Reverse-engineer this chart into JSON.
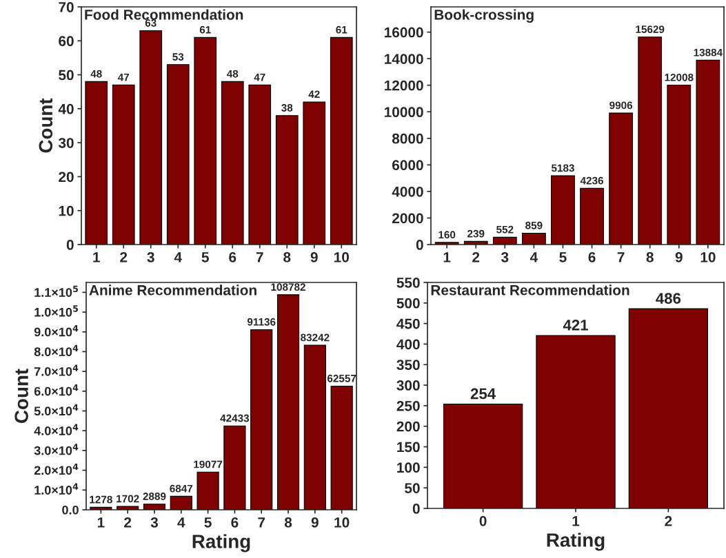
{
  "chart_data": [
    {
      "type": "bar",
      "title": "Food Recommendation",
      "ylabel": "Count",
      "categories": [
        "1",
        "2",
        "3",
        "4",
        "5",
        "6",
        "7",
        "8",
        "9",
        "10"
      ],
      "values": [
        48,
        47,
        63,
        53,
        61,
        48,
        47,
        38,
        42,
        61
      ],
      "color": "#7f0000",
      "ylim": [
        0,
        70
      ],
      "yticks": [
        0,
        10,
        20,
        30,
        40,
        50,
        60,
        70
      ],
      "data_labels": true,
      "grid": false,
      "legend": false
    },
    {
      "type": "bar",
      "title": "Book-crossing",
      "categories": [
        "1",
        "2",
        "3",
        "4",
        "5",
        "6",
        "7",
        "8",
        "9",
        "10"
      ],
      "values": [
        160,
        239,
        552,
        859,
        5183,
        4236,
        9906,
        15629,
        12008,
        13884
      ],
      "color": "#7f0000",
      "ylim": [
        0,
        17900
      ],
      "yticks": [
        0,
        2000,
        4000,
        6000,
        8000,
        10000,
        12000,
        14000,
        16000
      ],
      "data_labels": true,
      "grid": false,
      "legend": false
    },
    {
      "type": "bar",
      "title": "Anime Recommendation",
      "ylabel": "Count",
      "xlabel": "Rating",
      "categories": [
        "1",
        "2",
        "3",
        "4",
        "5",
        "6",
        "7",
        "8",
        "9",
        "10"
      ],
      "values": [
        1278,
        1702,
        2889,
        6847,
        19077,
        42433,
        91136,
        108782,
        83242,
        62557
      ],
      "color": "#7f0000",
      "ylim": [
        0,
        115000
      ],
      "yticks": [
        {
          "value": 0,
          "label": "0.0"
        },
        {
          "value": 10000,
          "label": "1.0×10$^{4}$"
        },
        {
          "value": 20000,
          "label": "2.0×10$^{4}$"
        },
        {
          "value": 30000,
          "label": "3.0×10$^{4}$"
        },
        {
          "value": 40000,
          "label": "4.0×10$^{4}$"
        },
        {
          "value": 50000,
          "label": "5.0×10$^{4}$"
        },
        {
          "value": 60000,
          "label": "6.0×10$^{4}$"
        },
        {
          "value": 70000,
          "label": "7.0×10$^{4}$"
        },
        {
          "value": 80000,
          "label": "8.0×10$^{4}$"
        },
        {
          "value": 90000,
          "label": "9.0×10$^{4}$"
        },
        {
          "value": 100000,
          "label": "1.0×10$^{5}$"
        },
        {
          "value": 110000,
          "label": "1.1×10$^{5}$"
        }
      ],
      "data_labels": true,
      "grid": false,
      "legend": false
    },
    {
      "type": "bar",
      "title": "Restaurant Recommendation",
      "xlabel": "Rating",
      "categories": [
        "0",
        "1",
        "2"
      ],
      "values": [
        254,
        421,
        486
      ],
      "color": "#7f0000",
      "ylim": [
        0,
        550
      ],
      "yticks": [
        0,
        50,
        100,
        150,
        200,
        250,
        300,
        350,
        400,
        450,
        500,
        550
      ],
      "data_labels": true,
      "grid": false,
      "legend": false
    }
  ]
}
